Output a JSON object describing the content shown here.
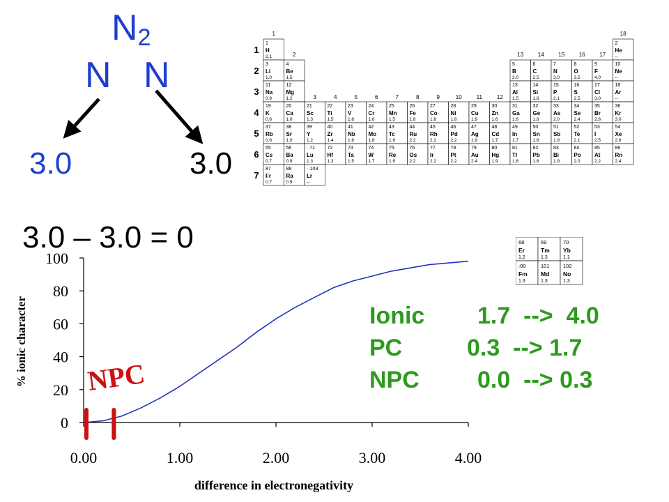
{
  "molecule": {
    "formula_main": "N",
    "formula_sub": "2",
    "atom_left": "N",
    "atom_right": "N",
    "en_left": "3.0",
    "en_right": "3.0",
    "equation": "3.0 – 3.0 = 0",
    "color": "#1e3fd0"
  },
  "periodic_table": {
    "group_numbers": [
      "1",
      "2",
      "3",
      "4",
      "5",
      "6",
      "7",
      "8",
      "9",
      "10",
      "11",
      "12",
      "13",
      "14",
      "15",
      "16",
      "17",
      "18"
    ],
    "period_numbers": [
      "1",
      "2",
      "3",
      "4",
      "5",
      "6",
      "7"
    ],
    "cells": [
      {
        "n": "1",
        "s": "H",
        "e": "2.1",
        "g": 1,
        "p": 1
      },
      {
        "n": "2",
        "s": "He",
        "e": "--",
        "g": 18,
        "p": 1
      },
      {
        "n": "3",
        "s": "Li",
        "e": "1.0",
        "g": 1,
        "p": 2
      },
      {
        "n": "4",
        "s": "Be",
        "e": "1.5",
        "g": 2,
        "p": 2
      },
      {
        "n": "5",
        "s": "B",
        "e": "2.0",
        "g": 13,
        "p": 2
      },
      {
        "n": "6",
        "s": "C",
        "e": "2.5",
        "g": 14,
        "p": 2
      },
      {
        "n": "7",
        "s": "N",
        "e": "3.0",
        "g": 15,
        "p": 2
      },
      {
        "n": "8",
        "s": "O",
        "e": "3.5",
        "g": 16,
        "p": 2
      },
      {
        "n": "9",
        "s": "F",
        "e": "4.0",
        "g": 17,
        "p": 2
      },
      {
        "n": "10",
        "s": "Ne",
        "e": "--",
        "g": 18,
        "p": 2
      },
      {
        "n": "11",
        "s": "Na",
        "e": "0.9",
        "g": 1,
        "p": 3
      },
      {
        "n": "12",
        "s": "Mg",
        "e": "1.2",
        "g": 2,
        "p": 3
      },
      {
        "n": "13",
        "s": "Al",
        "e": "1.5",
        "g": 13,
        "p": 3
      },
      {
        "n": "14",
        "s": "Si",
        "e": "1.8",
        "g": 14,
        "p": 3
      },
      {
        "n": "15",
        "s": "P",
        "e": "2.1",
        "g": 15,
        "p": 3
      },
      {
        "n": "16",
        "s": "S",
        "e": "2.5",
        "g": 16,
        "p": 3
      },
      {
        "n": "17",
        "s": "Cl",
        "e": "3.0",
        "g": 17,
        "p": 3
      },
      {
        "n": "18",
        "s": "Ar",
        "e": "--",
        "g": 18,
        "p": 3
      },
      {
        "n": "19",
        "s": "K",
        "e": "0.8",
        "g": 1,
        "p": 4
      },
      {
        "n": "20",
        "s": "Ca",
        "e": "1.0",
        "g": 2,
        "p": 4
      },
      {
        "n": "21",
        "s": "Sc",
        "e": "1.3",
        "g": 3,
        "p": 4
      },
      {
        "n": "22",
        "s": "Ti",
        "e": "1.5",
        "g": 4,
        "p": 4
      },
      {
        "n": "23",
        "s": "V",
        "e": "1.6",
        "g": 5,
        "p": 4
      },
      {
        "n": "24",
        "s": "Cr",
        "e": "1.6",
        "g": 6,
        "p": 4
      },
      {
        "n": "25",
        "s": "Mn",
        "e": "1.5",
        "g": 7,
        "p": 4
      },
      {
        "n": "26",
        "s": "Fe",
        "e": "1.8",
        "g": 8,
        "p": 4
      },
      {
        "n": "27",
        "s": "Co",
        "e": "1.8",
        "g": 9,
        "p": 4
      },
      {
        "n": "28",
        "s": "Ni",
        "e": "1.8",
        "g": 10,
        "p": 4
      },
      {
        "n": "29",
        "s": "Cu",
        "e": "1.9",
        "g": 11,
        "p": 4
      },
      {
        "n": "30",
        "s": "Zn",
        "e": "1.6",
        "g": 12,
        "p": 4
      },
      {
        "n": "31",
        "s": "Ga",
        "e": "1.6",
        "g": 13,
        "p": 4
      },
      {
        "n": "32",
        "s": "Ge",
        "e": "1.8",
        "g": 14,
        "p": 4
      },
      {
        "n": "33",
        "s": "As",
        "e": "2.0",
        "g": 15,
        "p": 4
      },
      {
        "n": "34",
        "s": "Se",
        "e": "2.4",
        "g": 16,
        "p": 4
      },
      {
        "n": "35",
        "s": "Br",
        "e": "2.8",
        "g": 17,
        "p": 4
      },
      {
        "n": "36",
        "s": "Kr",
        "e": "3.0",
        "g": 18,
        "p": 4
      },
      {
        "n": "37",
        "s": "Rb",
        "e": "0.8",
        "g": 1,
        "p": 5
      },
      {
        "n": "38",
        "s": "Sr",
        "e": "1.0",
        "g": 2,
        "p": 5
      },
      {
        "n": "39",
        "s": "Y",
        "e": "1.2",
        "g": 3,
        "p": 5
      },
      {
        "n": "40",
        "s": "Zr",
        "e": "1.4",
        "g": 4,
        "p": 5
      },
      {
        "n": "41",
        "s": "Nb",
        "e": "1.6",
        "g": 5,
        "p": 5
      },
      {
        "n": "42",
        "s": "Mo",
        "e": "1.8",
        "g": 6,
        "p": 5
      },
      {
        "n": "43",
        "s": "Tc",
        "e": "1.9",
        "g": 7,
        "p": 5
      },
      {
        "n": "44",
        "s": "Ru",
        "e": "2.2",
        "g": 8,
        "p": 5
      },
      {
        "n": "45",
        "s": "Rh",
        "e": "2.2",
        "g": 9,
        "p": 5
      },
      {
        "n": "46",
        "s": "Pd",
        "e": "2.2",
        "g": 10,
        "p": 5
      },
      {
        "n": "47",
        "s": "Ag",
        "e": "1.9",
        "g": 11,
        "p": 5
      },
      {
        "n": "48",
        "s": "Cd",
        "e": "1.7",
        "g": 12,
        "p": 5
      },
      {
        "n": "49",
        "s": "In",
        "e": "1.7",
        "g": 13,
        "p": 5
      },
      {
        "n": "50",
        "s": "Sn",
        "e": "1.8",
        "g": 14,
        "p": 5
      },
      {
        "n": "51",
        "s": "Sb",
        "e": "1.9",
        "g": 15,
        "p": 5
      },
      {
        "n": "52",
        "s": "Te",
        "e": "2.1",
        "g": 16,
        "p": 5
      },
      {
        "n": "53",
        "s": "I",
        "e": "2.5",
        "g": 17,
        "p": 5
      },
      {
        "n": "54",
        "s": "Xe",
        "e": "2.6",
        "g": 18,
        "p": 5
      },
      {
        "n": "55",
        "s": "Cs",
        "e": "0.7",
        "g": 1,
        "p": 6
      },
      {
        "n": "56",
        "s": "Ba",
        "e": "0.9",
        "g": 2,
        "p": 6
      },
      {
        "n": "· 71",
        "s": "Lu",
        "e": "1.3",
        "g": 3,
        "p": 6
      },
      {
        "n": "72",
        "s": "Hf",
        "e": "1.3",
        "g": 4,
        "p": 6
      },
      {
        "n": "73",
        "s": "Ta",
        "e": "1.5",
        "g": 5,
        "p": 6
      },
      {
        "n": "74",
        "s": "W",
        "e": "1.7",
        "g": 6,
        "p": 6
      },
      {
        "n": "75",
        "s": "Re",
        "e": "1.9",
        "g": 7,
        "p": 6
      },
      {
        "n": "76",
        "s": "Os",
        "e": "2.2",
        "g": 8,
        "p": 6
      },
      {
        "n": "77",
        "s": "Ir",
        "e": "2.2",
        "g": 9,
        "p": 6
      },
      {
        "n": "78",
        "s": "Pt",
        "e": "2.2",
        "g": 10,
        "p": 6
      },
      {
        "n": "79",
        "s": "Au",
        "e": "2.4",
        "g": 11,
        "p": 6
      },
      {
        "n": "80",
        "s": "Hg",
        "e": "1.9",
        "g": 12,
        "p": 6
      },
      {
        "n": "81",
        "s": "Tl",
        "e": "1.8",
        "g": 13,
        "p": 6
      },
      {
        "n": "82",
        "s": "Pb",
        "e": "1.8",
        "g": 14,
        "p": 6
      },
      {
        "n": "83",
        "s": "Bi",
        "e": "1.9",
        "g": 15,
        "p": 6
      },
      {
        "n": "84",
        "s": "Po",
        "e": "2.0",
        "g": 16,
        "p": 6
      },
      {
        "n": "85",
        "s": "At",
        "e": "2.2",
        "g": 17,
        "p": 6
      },
      {
        "n": "86",
        "s": "Rn",
        "e": "2.4",
        "g": 18,
        "p": 6
      },
      {
        "n": "87",
        "s": "Fr",
        "e": "0.7",
        "g": 1,
        "p": 7
      },
      {
        "n": "88",
        "s": "Ra",
        "e": "0.9",
        "g": 2,
        "p": 7
      },
      {
        "n": "··103",
        "s": "Lr",
        "e": "--",
        "g": 3,
        "p": 7
      }
    ],
    "fblock": [
      {
        "n": "68",
        "s": "Er",
        "e": "1.2",
        "c": 0,
        "r": 0
      },
      {
        "n": "69",
        "s": "Tm",
        "e": "1.3",
        "c": 1,
        "r": 0
      },
      {
        "n": "70",
        "s": "Yb",
        "e": "1.1",
        "c": 2,
        "r": 0
      },
      {
        "n": ":00",
        "s": "Fm",
        "e": "1.3",
        "c": 0,
        "r": 1
      },
      {
        "n": "101",
        "s": "Md",
        "e": "1.3",
        "c": 1,
        "r": 1
      },
      {
        "n": "102",
        "s": "No",
        "e": "1.3",
        "c": 2,
        "r": 1
      }
    ]
  },
  "chart_data": {
    "type": "line",
    "xlabel": "difference in electronegativity",
    "ylabel": "% ionic character",
    "xlim": [
      0,
      4
    ],
    "ylim": [
      0,
      100
    ],
    "xticks": [
      "0.00",
      "1.00",
      "2.00",
      "3.00",
      "4.00"
    ],
    "yticks": [
      "0",
      "20",
      "40",
      "60",
      "80",
      "100"
    ],
    "series": [
      {
        "x": [
          0.0,
          0.2,
          0.4,
          0.6,
          0.8,
          1.0,
          1.2,
          1.4,
          1.6,
          1.8,
          2.0,
          2.2,
          2.4,
          2.6,
          2.8,
          3.0,
          3.2,
          3.4,
          3.6,
          3.8,
          4.0
        ],
        "y": [
          0,
          1,
          4,
          9,
          15,
          22,
          30,
          38,
          46,
          55,
          63,
          70,
          76,
          82,
          86,
          89,
          92,
          94,
          96,
          97,
          98
        ],
        "color": "#2233bb"
      }
    ],
    "annotation": {
      "text": "NPC",
      "color": "#cc1111",
      "markers_x": [
        0.0,
        0.3
      ]
    }
  },
  "legend_table": {
    "color": "#2e9a1e",
    "rows": [
      {
        "label": "Ionic",
        "range": "1.7  -->  4.0"
      },
      {
        "label": "PC",
        "range": "0.3  --> 1.7"
      },
      {
        "label": "NPC",
        "range": "0.0  --> 0.3"
      }
    ]
  }
}
